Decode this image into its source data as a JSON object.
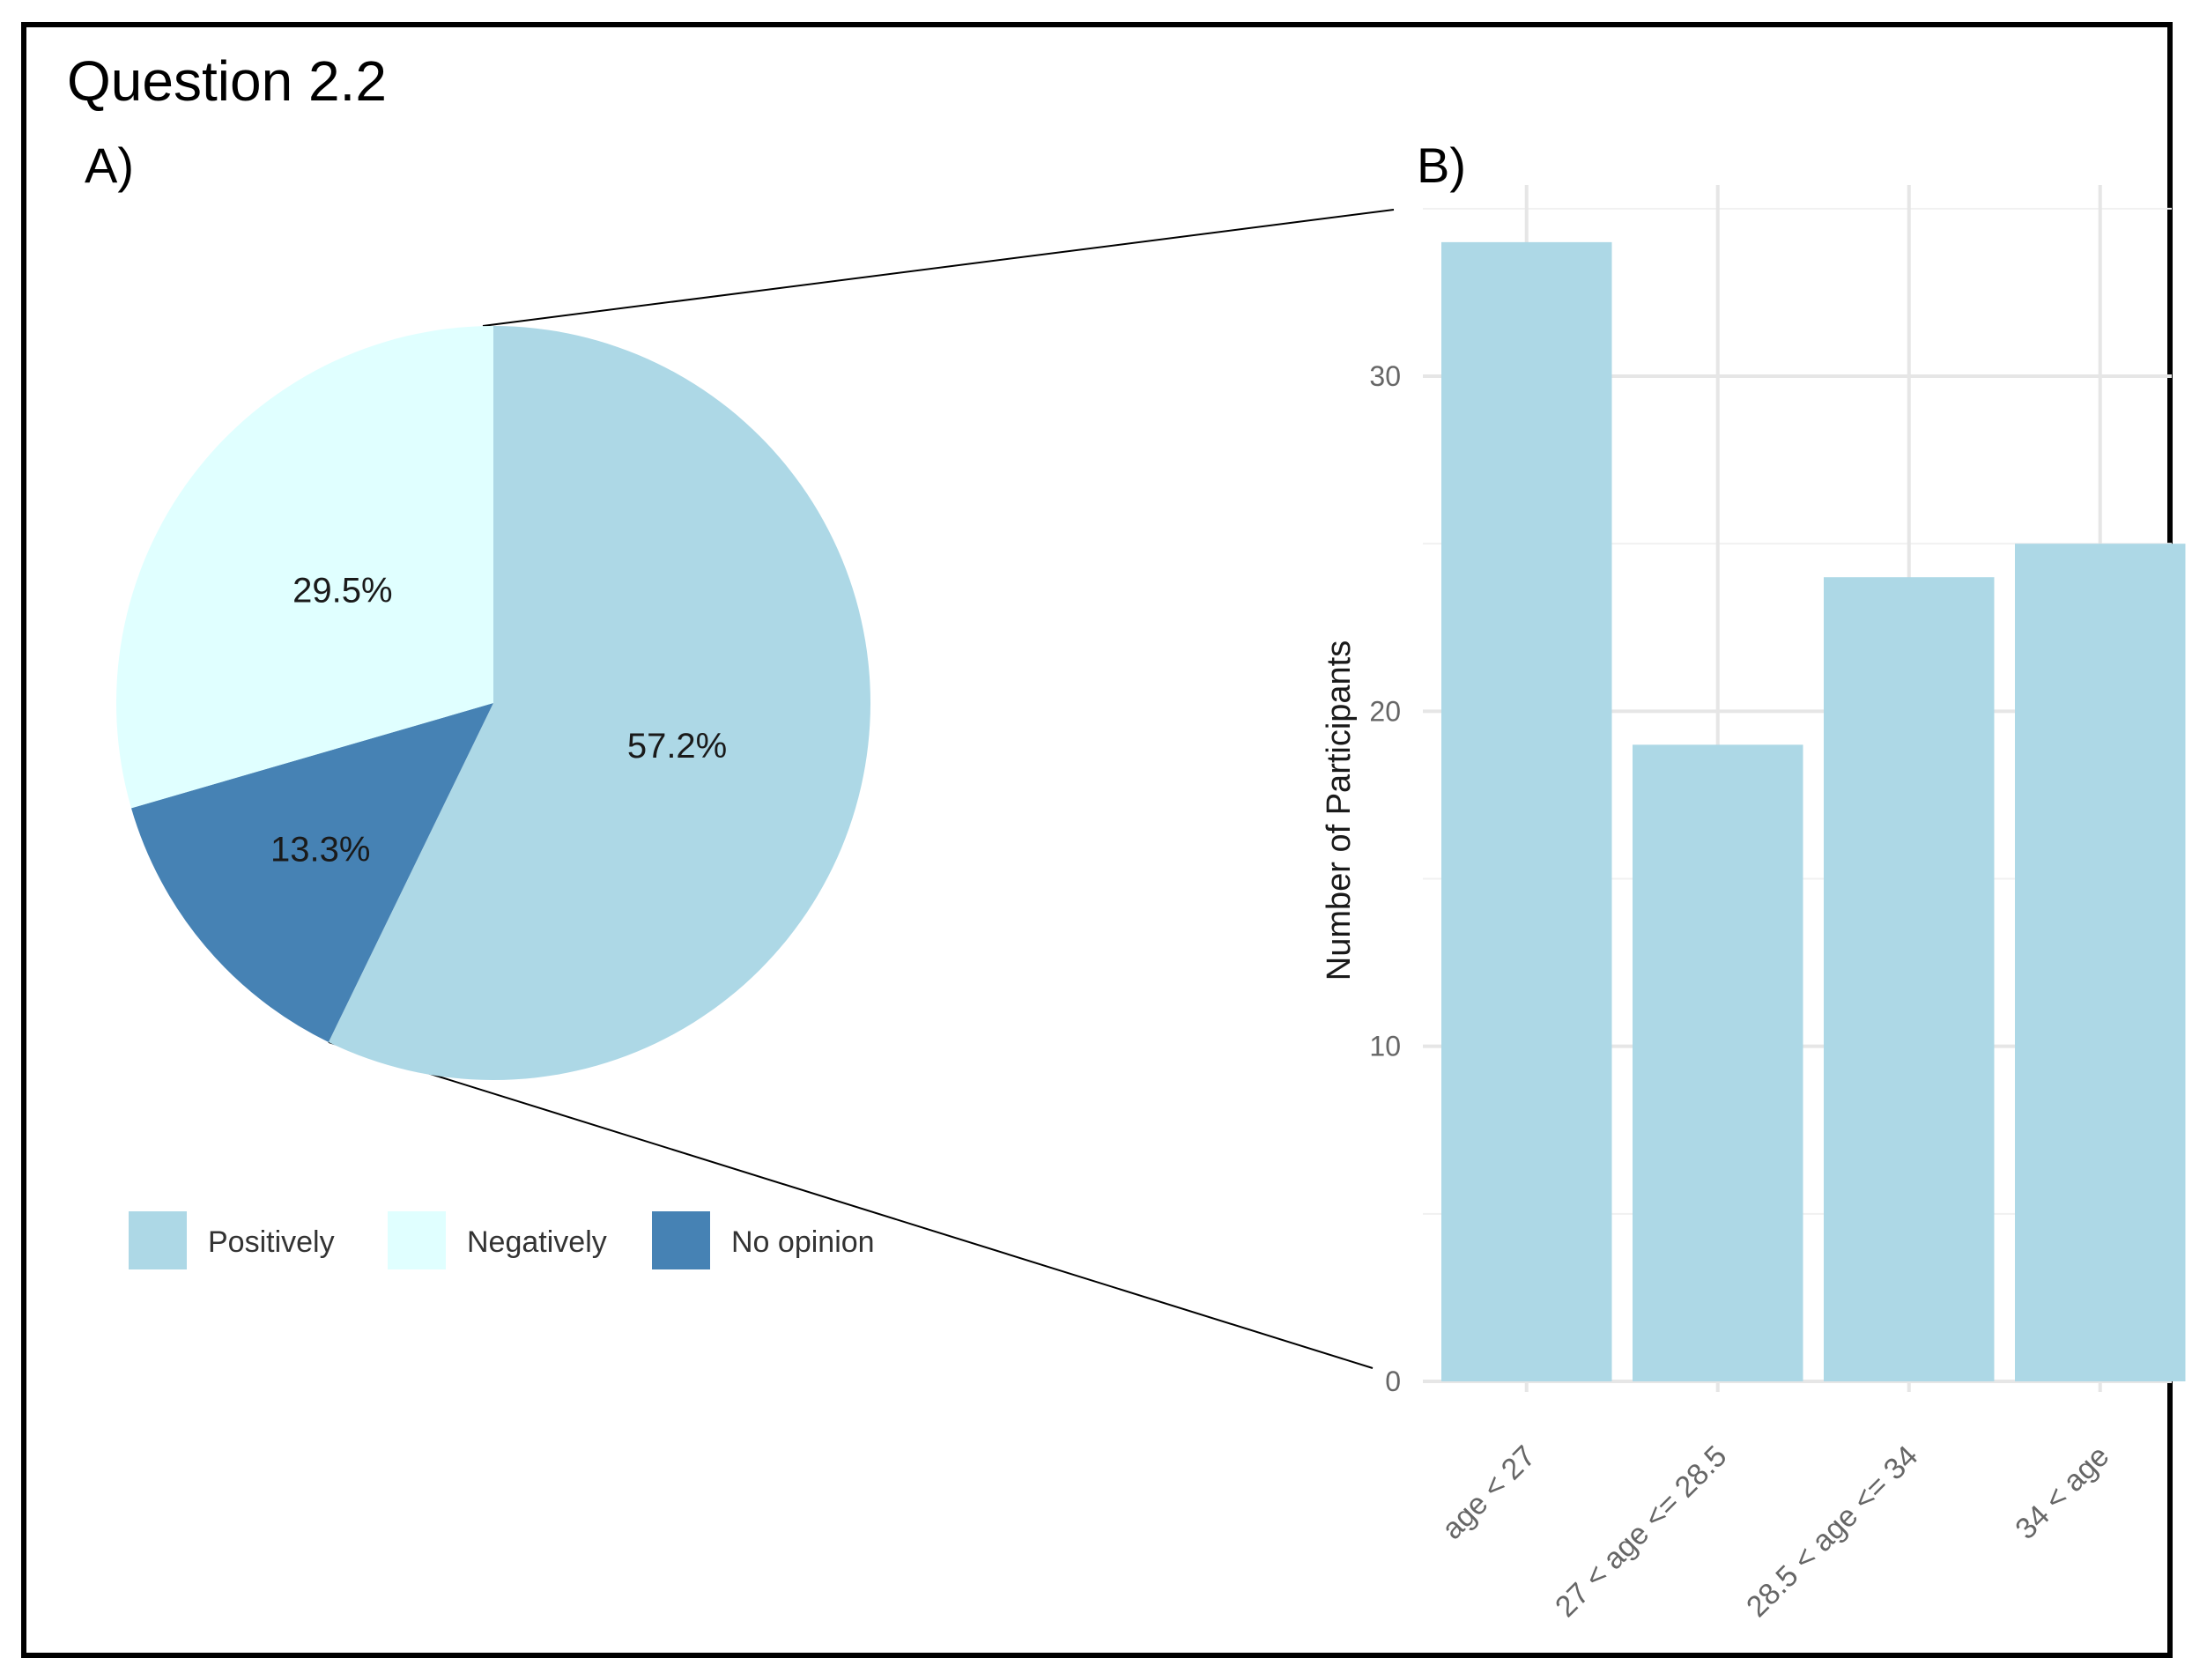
{
  "figure": {
    "title": "Question 2.2",
    "panel_a_label": "A)",
    "panel_b_label": "B)"
  },
  "chart_data": [
    {
      "type": "pie",
      "panel": "A)",
      "slices": [
        {
          "label": "Positively",
          "value": 57.2,
          "text": "57.2%",
          "color": "#add8e6"
        },
        {
          "label": "No opinion",
          "value": 13.3,
          "text": "13.3%",
          "color": "#4682b4"
        },
        {
          "label": "Negatively",
          "value": 29.5,
          "text": "29.5%",
          "color": "#e0ffff"
        }
      ],
      "legend": [
        "Positively",
        "Negatively",
        "No opinion"
      ],
      "legend_position": "bottom"
    },
    {
      "type": "bar",
      "panel": "B)",
      "categories": [
        "age < 27",
        "27 < age <= 28.5",
        "28.5 < age <= 34",
        "34 < age"
      ],
      "values": [
        34,
        19,
        24,
        25
      ],
      "ylabel": "Number of Participants",
      "xlabel": "",
      "ylim": [
        0,
        35
      ],
      "yticks": [
        0,
        10,
        20,
        30
      ],
      "bar_color": "#add8e6",
      "grid": true
    }
  ]
}
